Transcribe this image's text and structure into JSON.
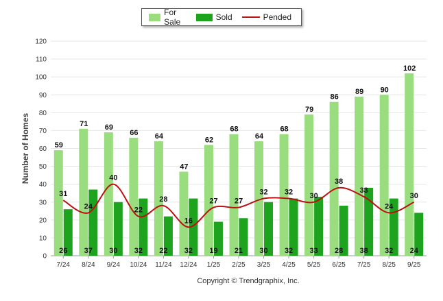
{
  "chart_data": {
    "type": "bar",
    "title": "",
    "xlabel": "",
    "ylabel": "Number of Homes",
    "ylim": [
      0,
      120
    ],
    "yticks": [
      0,
      10,
      20,
      30,
      40,
      50,
      60,
      70,
      80,
      90,
      100,
      110,
      120
    ],
    "grid": true,
    "legend_position": "top-center",
    "categories": [
      "7/24",
      "8/24",
      "9/24",
      "10/24",
      "11/24",
      "12/24",
      "1/25",
      "2/25",
      "3/25",
      "4/25",
      "5/25",
      "6/25",
      "7/25",
      "8/25",
      "9/25"
    ],
    "series": [
      {
        "name": "For Sale",
        "kind": "bar",
        "color": "#99dd7f",
        "values": [
          59,
          71,
          69,
          66,
          64,
          47,
          62,
          68,
          64,
          68,
          79,
          86,
          89,
          90,
          102
        ]
      },
      {
        "name": "Sold",
        "kind": "bar",
        "color": "#1ea31e",
        "values": [
          26,
          37,
          30,
          32,
          22,
          32,
          19,
          21,
          30,
          32,
          33,
          28,
          38,
          32,
          24
        ]
      },
      {
        "name": "Pended",
        "kind": "line",
        "color": "#bb1111",
        "values": [
          31,
          24,
          40,
          22,
          28,
          16,
          27,
          27,
          32,
          32,
          30,
          38,
          33,
          24,
          30
        ]
      }
    ],
    "footer": "Copyright © Trendgraphix, Inc."
  }
}
